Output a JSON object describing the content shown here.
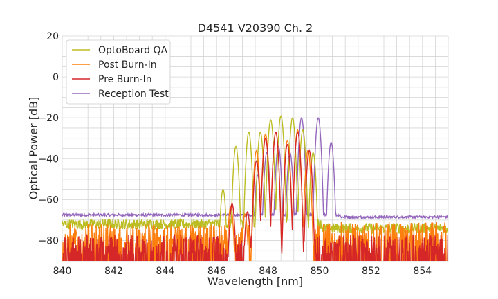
{
  "chart_data": {
    "type": "line",
    "title": "D4541 V20390 Ch. 2",
    "xlabel": "Wavelength [nm]",
    "ylabel": "Optical Power [dB]",
    "xlim": [
      840,
      855
    ],
    "ylim": [
      -90,
      20
    ],
    "xticks": [
      840,
      842,
      844,
      846,
      848,
      850,
      852,
      854
    ],
    "yticks": [
      20,
      0,
      -20,
      -40,
      -60,
      -80
    ],
    "ytick_labels": [
      "20",
      "0",
      "−20",
      "−40",
      "−60",
      "−80"
    ],
    "xminor_step": 0.5,
    "yminor_step": 5,
    "grid": true,
    "legend_position": "top-left",
    "series": [
      {
        "name": "OptoBoard QA",
        "color": "#bcbd22",
        "noise_floor": -72,
        "noise_from": 840,
        "noise_to": 850.1,
        "after_floor": -74,
        "after_from": 850.1,
        "peaks": [
          [
            846.25,
            -55
          ],
          [
            846.75,
            -34
          ],
          [
            847.25,
            -27
          ],
          [
            847.7,
            -27
          ],
          [
            848.1,
            -21
          ],
          [
            848.5,
            -19
          ],
          [
            848.95,
            -20
          ],
          [
            849.35,
            -26
          ],
          [
            849.75,
            -37
          ]
        ]
      },
      {
        "name": "Post Burn-In",
        "color": "#ff7f0e",
        "noise_floor": -79,
        "noise_from": 840,
        "noise_to": 850.0,
        "after_floor": -78,
        "after_from": 850.0,
        "peaks": [
          [
            846.55,
            -63
          ],
          [
            847.1,
            -67
          ],
          [
            847.55,
            -36
          ],
          [
            847.9,
            -28
          ],
          [
            848.3,
            -27
          ],
          [
            848.75,
            -31
          ],
          [
            849.15,
            -26
          ],
          [
            849.55,
            -36
          ]
        ]
      },
      {
        "name": "Pre Burn-In",
        "color": "#d62728",
        "noise_floor": -84,
        "noise_from": 840,
        "noise_to": 850.0,
        "after_floor": -84,
        "after_from": 850.0,
        "peaks": [
          [
            846.6,
            -62
          ],
          [
            847.2,
            -66
          ],
          [
            847.55,
            -41
          ],
          [
            847.9,
            -30
          ],
          [
            848.3,
            -27
          ],
          [
            848.75,
            -33
          ],
          [
            849.15,
            -27
          ],
          [
            849.6,
            -36
          ]
        ]
      },
      {
        "name": "Reception Test",
        "color": "#9467bd",
        "noise_floor": -67.5,
        "noise_from": 840,
        "noise_to": 855,
        "after_floor": -68.5,
        "after_from": 850.8,
        "peaks": [
          [
            846.6,
            -62
          ],
          [
            847.05,
            -70
          ],
          [
            847.6,
            -48
          ],
          [
            847.95,
            -37
          ],
          [
            848.4,
            -34
          ],
          [
            848.85,
            -37
          ],
          [
            849.3,
            -20
          ],
          [
            849.95,
            -20
          ],
          [
            850.45,
            -32
          ]
        ]
      }
    ]
  }
}
